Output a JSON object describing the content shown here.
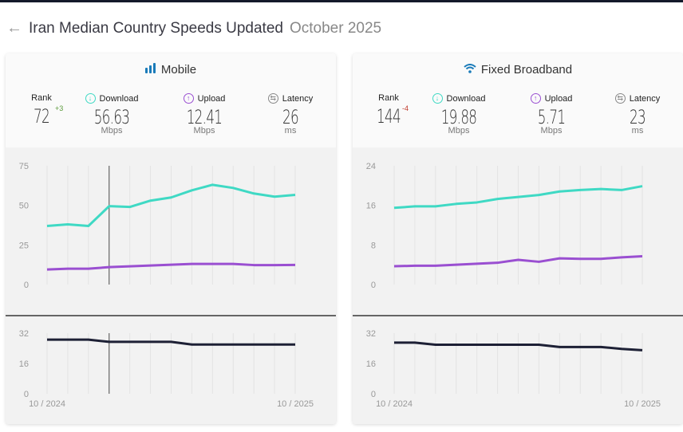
{
  "header": {
    "back_icon": "arrow-left-icon",
    "title": "Iran Median Country Speeds Updated",
    "date": "October 2025"
  },
  "colors": {
    "download": "#3fd9c4",
    "upload": "#9a4fd1",
    "latency": "#1d2035",
    "accent": "#1a7bb9",
    "rank_up": "#5a9a3a",
    "rank_down": "#c0392b"
  },
  "cards": [
    {
      "title": "Mobile",
      "icon": "signal-bars-icon",
      "rank": {
        "label": "Rank",
        "value": "72",
        "delta": "+3"
      },
      "download": {
        "label": "Download",
        "value": "56.63",
        "unit": "Mbps"
      },
      "upload": {
        "label": "Upload",
        "value": "12.41",
        "unit": "Mbps"
      },
      "latency": {
        "label": "Latency",
        "value": "26",
        "unit": "ms"
      }
    },
    {
      "title": "Fixed Broadband",
      "icon": "wifi-icon",
      "rank": {
        "label": "Rank",
        "value": "144",
        "delta": "-4"
      },
      "download": {
        "label": "Download",
        "value": "19.88",
        "unit": "Mbps"
      },
      "upload": {
        "label": "Upload",
        "value": "5.71",
        "unit": "Mbps"
      },
      "latency": {
        "label": "Latency",
        "value": "23",
        "unit": "ms"
      }
    }
  ],
  "chart_data": [
    {
      "type": "line",
      "title": "Mobile",
      "x_start_label": "10 / 2024",
      "x_end_label": "10 / 2025",
      "hover_index": 3,
      "speed": {
        "ylim": [
          0,
          75
        ],
        "yticks": [
          "0",
          "25",
          "50",
          "75"
        ],
        "series": [
          {
            "key": "download",
            "values": [
              37,
              38,
              37,
              49.5,
              49,
              53,
              55,
              59.5,
              63,
              61,
              57.5,
              55.5,
              56.63
            ]
          },
          {
            "key": "upload",
            "values": [
              9.5,
              10,
              10,
              11,
              11.5,
              12,
              12.5,
              13,
              13,
              13,
              12.3,
              12.3,
              12.41
            ]
          }
        ]
      },
      "latency": {
        "ylim": [
          0,
          32
        ],
        "yticks": [
          "0",
          "16",
          "32"
        ],
        "values": [
          28.6,
          28.6,
          28.6,
          27.4,
          27.4,
          27.4,
          27.4,
          26,
          26,
          26,
          26,
          26,
          26
        ]
      }
    },
    {
      "type": "line",
      "title": "Fixed Broadband",
      "x_start_label": "10 / 2024",
      "x_end_label": "10 / 2025",
      "speed": {
        "ylim": [
          0,
          24
        ],
        "yticks": [
          "0",
          "8",
          "16",
          "24"
        ],
        "series": [
          {
            "key": "download",
            "values": [
              15.5,
              15.8,
              15.8,
              16.3,
              16.6,
              17.3,
              17.7,
              18.1,
              18.8,
              19.1,
              19.3,
              19.1,
              19.88
            ]
          },
          {
            "key": "upload",
            "values": [
              3.7,
              3.8,
              3.8,
              4.0,
              4.2,
              4.4,
              5.0,
              4.6,
              5.3,
              5.2,
              5.2,
              5.5,
              5.71
            ]
          }
        ]
      },
      "latency": {
        "ylim": [
          0,
          32
        ],
        "yticks": [
          "0",
          "16",
          "32"
        ],
        "values": [
          27,
          27,
          25.9,
          25.9,
          25.9,
          25.9,
          25.9,
          25.9,
          24.7,
          24.7,
          24.7,
          23.7,
          23
        ]
      }
    }
  ]
}
